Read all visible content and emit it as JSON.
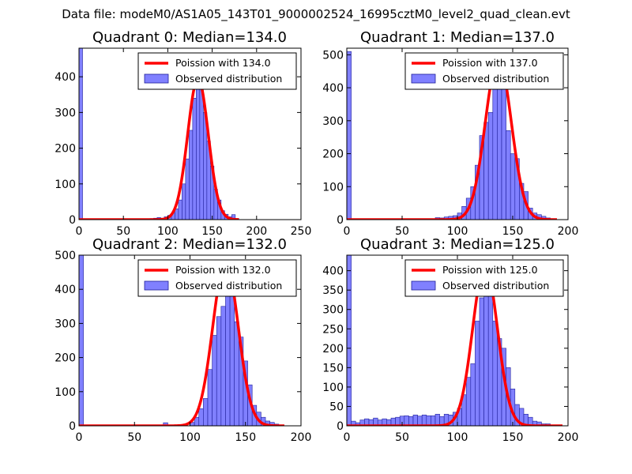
{
  "figure_title": "Data file: modeM0/AS1A05_143T01_9000002524_16995cztM0_level2_quad_clean.evt",
  "colors": {
    "bar_fill": "#8080ff",
    "bar_edge": "#1f1f99",
    "poisson_line": "#ff0000",
    "axes": "#000000",
    "background": "#ffffff"
  },
  "chart_data": [
    {
      "type": "bar",
      "title": "Quadrant 0: Median=134.0",
      "xlim": [
        0,
        250
      ],
      "ylim": [
        0,
        480
      ],
      "xticks": [
        0,
        50,
        100,
        150,
        200,
        250
      ],
      "yticks": [
        0,
        100,
        200,
        300,
        400
      ],
      "bin_width": 4,
      "bins": [
        [
          0,
          480
        ],
        [
          80,
          3
        ],
        [
          84,
          4
        ],
        [
          88,
          6
        ],
        [
          92,
          4
        ],
        [
          96,
          8
        ],
        [
          100,
          12
        ],
        [
          104,
          18
        ],
        [
          108,
          30
        ],
        [
          112,
          55
        ],
        [
          116,
          100
        ],
        [
          120,
          170
        ],
        [
          124,
          250
        ],
        [
          128,
          340
        ],
        [
          132,
          380
        ],
        [
          136,
          375
        ],
        [
          140,
          300
        ],
        [
          144,
          220
        ],
        [
          148,
          150
        ],
        [
          152,
          85
        ],
        [
          156,
          55
        ],
        [
          160,
          25
        ],
        [
          164,
          15
        ],
        [
          168,
          8
        ],
        [
          172,
          14
        ],
        [
          176,
          3
        ]
      ],
      "poisson_mu": 134.0,
      "poisson_peak": 395,
      "poisson_xrange": [
        0,
        180
      ],
      "legend": [
        "Poission with 134.0",
        "Observed distribution"
      ]
    },
    {
      "type": "bar",
      "title": "Quadrant 1: Median=137.0",
      "xlim": [
        0,
        200
      ],
      "ylim": [
        0,
        520
      ],
      "xticks": [
        0,
        50,
        100,
        150,
        200
      ],
      "yticks": [
        0,
        100,
        200,
        300,
        400,
        500
      ],
      "bin_width": 4,
      "bins": [
        [
          0,
          510
        ],
        [
          80,
          6
        ],
        [
          84,
          5
        ],
        [
          88,
          8
        ],
        [
          92,
          10
        ],
        [
          96,
          12
        ],
        [
          100,
          20
        ],
        [
          104,
          40
        ],
        [
          108,
          65
        ],
        [
          112,
          100
        ],
        [
          116,
          165
        ],
        [
          120,
          255
        ],
        [
          124,
          295
        ],
        [
          128,
          325
        ],
        [
          132,
          400
        ],
        [
          136,
          480
        ],
        [
          140,
          405
        ],
        [
          144,
          270
        ],
        [
          148,
          200
        ],
        [
          152,
          185
        ],
        [
          156,
          110
        ],
        [
          160,
          85
        ],
        [
          164,
          35
        ],
        [
          168,
          20
        ],
        [
          172,
          15
        ],
        [
          176,
          10
        ],
        [
          180,
          5
        ],
        [
          184,
          3
        ]
      ],
      "poisson_mu": 137.0,
      "poisson_peak": 490,
      "poisson_xrange": [
        0,
        190
      ],
      "legend": [
        "Poission with 137.0",
        "Observed distribution"
      ]
    },
    {
      "type": "bar",
      "title": "Quadrant 2: Median=132.0",
      "xlim": [
        0,
        200
      ],
      "ylim": [
        0,
        500
      ],
      "xticks": [
        0,
        50,
        100,
        150,
        200
      ],
      "yticks": [
        0,
        100,
        200,
        300,
        400,
        500
      ],
      "bin_width": 4,
      "bins": [
        [
          0,
          500
        ],
        [
          76,
          9
        ],
        [
          100,
          10
        ],
        [
          104,
          25
        ],
        [
          108,
          50
        ],
        [
          112,
          80
        ],
        [
          116,
          165
        ],
        [
          120,
          265
        ],
        [
          124,
          320
        ],
        [
          128,
          350
        ],
        [
          132,
          470
        ],
        [
          136,
          405
        ],
        [
          140,
          305
        ],
        [
          144,
          260
        ],
        [
          148,
          190
        ],
        [
          152,
          120
        ],
        [
          156,
          60
        ],
        [
          160,
          40
        ],
        [
          164,
          25
        ],
        [
          168,
          14
        ],
        [
          172,
          10
        ],
        [
          176,
          5
        ]
      ],
      "poisson_mu": 132.0,
      "poisson_peak": 480,
      "poisson_xrange": [
        0,
        185
      ],
      "legend": [
        "Poission with 132.0",
        "Observed distribution"
      ]
    },
    {
      "type": "bar",
      "title": "Quadrant 3: Median=125.0",
      "xlim": [
        0,
        200
      ],
      "ylim": [
        0,
        440
      ],
      "xticks": [
        0,
        50,
        100,
        150,
        200
      ],
      "yticks": [
        0,
        50,
        100,
        150,
        200,
        250,
        300,
        350,
        400
      ],
      "bin_width": 4,
      "bins": [
        [
          0,
          440
        ],
        [
          4,
          12
        ],
        [
          8,
          8
        ],
        [
          12,
          15
        ],
        [
          16,
          18
        ],
        [
          20,
          16
        ],
        [
          24,
          20
        ],
        [
          28,
          15
        ],
        [
          32,
          18
        ],
        [
          36,
          16
        ],
        [
          40,
          20
        ],
        [
          44,
          22
        ],
        [
          48,
          25
        ],
        [
          52,
          26
        ],
        [
          56,
          24
        ],
        [
          60,
          28
        ],
        [
          64,
          25
        ],
        [
          68,
          28
        ],
        [
          72,
          26
        ],
        [
          76,
          26
        ],
        [
          80,
          30
        ],
        [
          84,
          24
        ],
        [
          88,
          30
        ],
        [
          92,
          28
        ],
        [
          96,
          35
        ],
        [
          100,
          45
        ],
        [
          104,
          80
        ],
        [
          108,
          125
        ],
        [
          112,
          160
        ],
        [
          116,
          270
        ],
        [
          120,
          330
        ],
        [
          124,
          355
        ],
        [
          128,
          350
        ],
        [
          132,
          270
        ],
        [
          136,
          225
        ],
        [
          140,
          200
        ],
        [
          144,
          150
        ],
        [
          148,
          95
        ],
        [
          152,
          55
        ],
        [
          156,
          45
        ],
        [
          160,
          30
        ],
        [
          164,
          22
        ],
        [
          168,
          12
        ],
        [
          172,
          10
        ],
        [
          176,
          5
        ],
        [
          180,
          5
        ],
        [
          184,
          2
        ]
      ],
      "poisson_mu": 125.0,
      "poisson_peak": 415,
      "poisson_xrange": [
        0,
        195
      ],
      "legend": [
        "Poission with 125.0",
        "Observed distribution"
      ]
    }
  ]
}
